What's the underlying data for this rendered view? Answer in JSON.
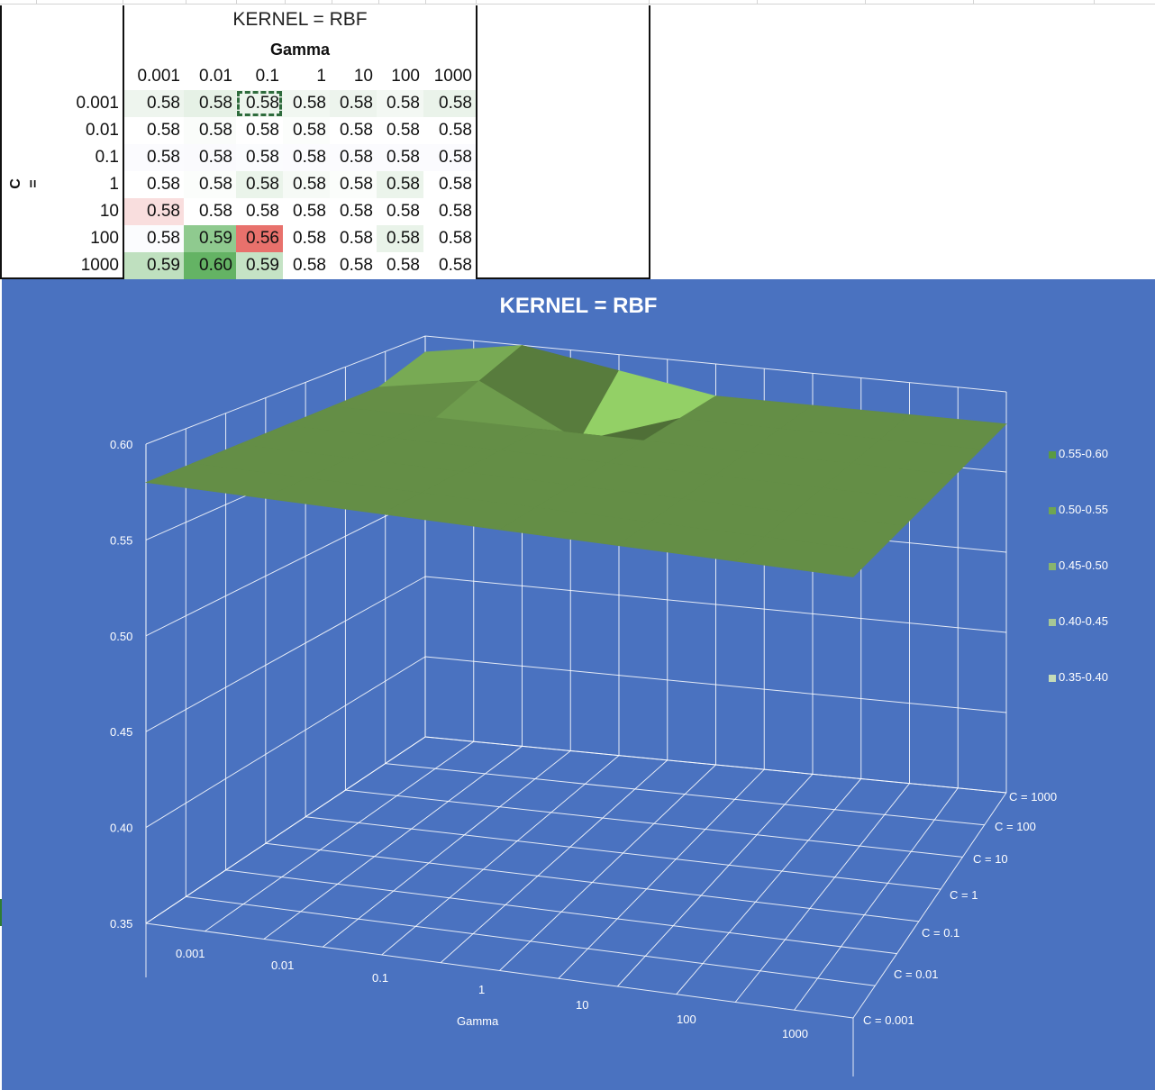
{
  "sheet": {
    "title": "KERNEL = RBF",
    "gamma_header": "Gamma",
    "c_label": "C =",
    "columns": [
      "0.001",
      "0.01",
      "0.1",
      "1",
      "10",
      "100",
      "1000"
    ],
    "rows": [
      {
        "label": "0.001",
        "values": [
          "0.58",
          "0.58",
          "0.58",
          "0.58",
          "0.58",
          "0.58",
          "0.58"
        ]
      },
      {
        "label": "0.01",
        "values": [
          "0.58",
          "0.58",
          "0.58",
          "0.58",
          "0.58",
          "0.58",
          "0.58"
        ]
      },
      {
        "label": "0.1",
        "values": [
          "0.58",
          "0.58",
          "0.58",
          "0.58",
          "0.58",
          "0.58",
          "0.58"
        ]
      },
      {
        "label": "1",
        "values": [
          "0.58",
          "0.58",
          "0.58",
          "0.58",
          "0.58",
          "0.58",
          "0.58"
        ]
      },
      {
        "label": "10",
        "values": [
          "0.58",
          "0.58",
          "0.58",
          "0.58",
          "0.58",
          "0.58",
          "0.58"
        ]
      },
      {
        "label": "100",
        "values": [
          "0.58",
          "0.59",
          "0.56",
          "0.58",
          "0.58",
          "0.58",
          "0.58"
        ]
      },
      {
        "label": "1000",
        "values": [
          "0.59",
          "0.60",
          "0.59",
          "0.58",
          "0.58",
          "0.58",
          "0.58"
        ]
      }
    ],
    "cell_colors": [
      [
        "#eef5ee",
        "#e6f1e6",
        "#edf5ed",
        "#f1f7f1",
        "#edf4ed",
        "#f3f8f3",
        "#eaf3ea"
      ],
      [
        "#ffffff",
        "#fafcfa",
        "#ffffff",
        "#fbfdfb",
        "#ffffff",
        "#ffffff",
        "#ffffff"
      ],
      [
        "#fbfbfe",
        "#fafafd",
        "#fbfcfe",
        "#fbfbfe",
        "#fbfbfe",
        "#fbfbfe",
        "#fbfbfe"
      ],
      [
        "#ffffff",
        "#fbfdfb",
        "#eaf4ea",
        "#f6faf6",
        "#fbfdfb",
        "#ebf4eb",
        "#ffffff"
      ],
      [
        "#f9dede",
        "#ffffff",
        "#ffffff",
        "#ffffff",
        "#ffffff",
        "#ffffff",
        "#ffffff"
      ],
      [
        "#fbfcfe",
        "#8fca8f",
        "#e8716c",
        "#ffffff",
        "#ffffff",
        "#e9f3e9",
        "#ffffff"
      ],
      [
        "#bfe0bf",
        "#64b364",
        "#c5e3c5",
        "#ffffff",
        "#ffffff",
        "#ffffff",
        "#ffffff"
      ]
    ]
  },
  "chart": {
    "title": "KERNEL = RBF",
    "background": "#4a72c0",
    "surface_color": "#6d9a4c",
    "z_ticks": [
      "0.60",
      "0.55",
      "0.50",
      "0.45",
      "0.40",
      "0.35"
    ],
    "x_ticks": [
      "0.001",
      "0.01",
      "0.1",
      "1",
      "10",
      "100",
      "1000"
    ],
    "x_label": "Gamma",
    "depth_ticks": [
      "C = 1000",
      "C = 100",
      "C = 10",
      "C = 1",
      "C = 0.1",
      "C = 0.01",
      "C = 0.001"
    ],
    "legend": [
      {
        "label": "0.55-0.60",
        "color": "#5b9a43"
      },
      {
        "label": "0.50-0.55",
        "color": "#6fa552"
      },
      {
        "label": "0.45-0.50",
        "color": "#88b46e"
      },
      {
        "label": "0.40-0.45",
        "color": "#a6c795"
      },
      {
        "label": "0.35-0.40",
        "color": "#c5dcb8"
      }
    ]
  },
  "chart_data": {
    "type": "surface",
    "title": "KERNEL = RBF",
    "xlabel": "Gamma",
    "ylabel": "C",
    "x": [
      "0.001",
      "0.01",
      "0.1",
      "1",
      "10",
      "100",
      "1000"
    ],
    "y": [
      "C = 0.001",
      "C = 0.01",
      "C = 0.1",
      "C = 1",
      "C = 10",
      "C = 100",
      "C = 1000"
    ],
    "z": [
      [
        0.58,
        0.58,
        0.58,
        0.58,
        0.58,
        0.58,
        0.58
      ],
      [
        0.58,
        0.58,
        0.58,
        0.58,
        0.58,
        0.58,
        0.58
      ],
      [
        0.58,
        0.58,
        0.58,
        0.58,
        0.58,
        0.58,
        0.58
      ],
      [
        0.58,
        0.58,
        0.58,
        0.58,
        0.58,
        0.58,
        0.58
      ],
      [
        0.58,
        0.58,
        0.58,
        0.58,
        0.58,
        0.58,
        0.58
      ],
      [
        0.58,
        0.59,
        0.56,
        0.58,
        0.58,
        0.58,
        0.58
      ],
      [
        0.59,
        0.6,
        0.59,
        0.58,
        0.58,
        0.58,
        0.58
      ]
    ],
    "zlim": [
      0.35,
      0.6
    ]
  }
}
